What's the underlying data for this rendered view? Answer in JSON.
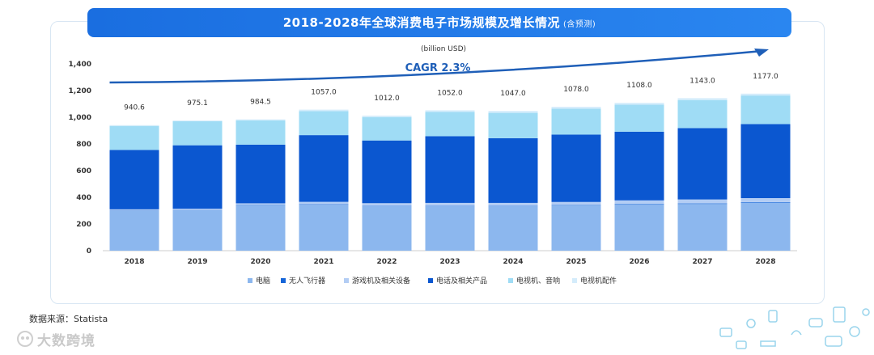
{
  "title": "2018-2028年全球消费电子市场规模及增长情况",
  "title_note": "(含预测)",
  "source": "数据来源：Statista",
  "watermark": "大数跨境",
  "colors": {
    "banner": "#1a6ee0",
    "cagr_line": "#1f5fb8",
    "series": [
      "#8cb7ee",
      "#1565d8",
      "#b3cdf4",
      "#0b57d0",
      "#9fdcf5",
      "#d4ecfb"
    ]
  },
  "chart_data": {
    "type": "bar",
    "stacked": true,
    "title": "2018-2028年全球消费电子市场规模及增长情况",
    "unit_label": "(billion USD)",
    "categories": [
      "2018",
      "2019",
      "2020",
      "2021",
      "2022",
      "2023",
      "2024",
      "2025",
      "2026",
      "2027",
      "2028"
    ],
    "totals": [
      "940.6",
      "975.1",
      "984.5",
      "1057.0",
      "1012.0",
      "1052.0",
      "1047.0",
      "1078.0",
      "1108.0",
      "1143.0",
      "1177.0"
    ],
    "series": [
      {
        "name": "电脑",
        "values": [
          300,
          303,
          340,
          345,
          335,
          335,
          335,
          340,
          345,
          350,
          360
        ]
      },
      {
        "name": "无人飞行器",
        "values": [
          2,
          2,
          3,
          3,
          3,
          3,
          3,
          3,
          4,
          4,
          4
        ]
      },
      {
        "name": "游戏机及相关设备",
        "values": [
          8,
          10,
          12,
          18,
          18,
          20,
          20,
          22,
          28,
          30,
          30
        ]
      },
      {
        "name": "电话及相关产品",
        "values": [
          445,
          475,
          440,
          500,
          470,
          500,
          485,
          505,
          515,
          535,
          555
        ]
      },
      {
        "name": "电视机、音响",
        "values": [
          180,
          180,
          182,
          180,
          175,
          183,
          190,
          195,
          202,
          210,
          214
        ]
      },
      {
        "name": "电视机配件",
        "values": [
          6,
          6,
          7,
          11,
          11,
          11,
          14,
          13,
          14,
          14,
          14
        ]
      }
    ],
    "yticks": [
      "0",
      "200",
      "400",
      "600",
      "800",
      "1,000",
      "1,200",
      "1,400"
    ],
    "ylim": [
      0,
      1400
    ],
    "annotation": "CAGR 2.3%",
    "legend_position": "bottom"
  }
}
